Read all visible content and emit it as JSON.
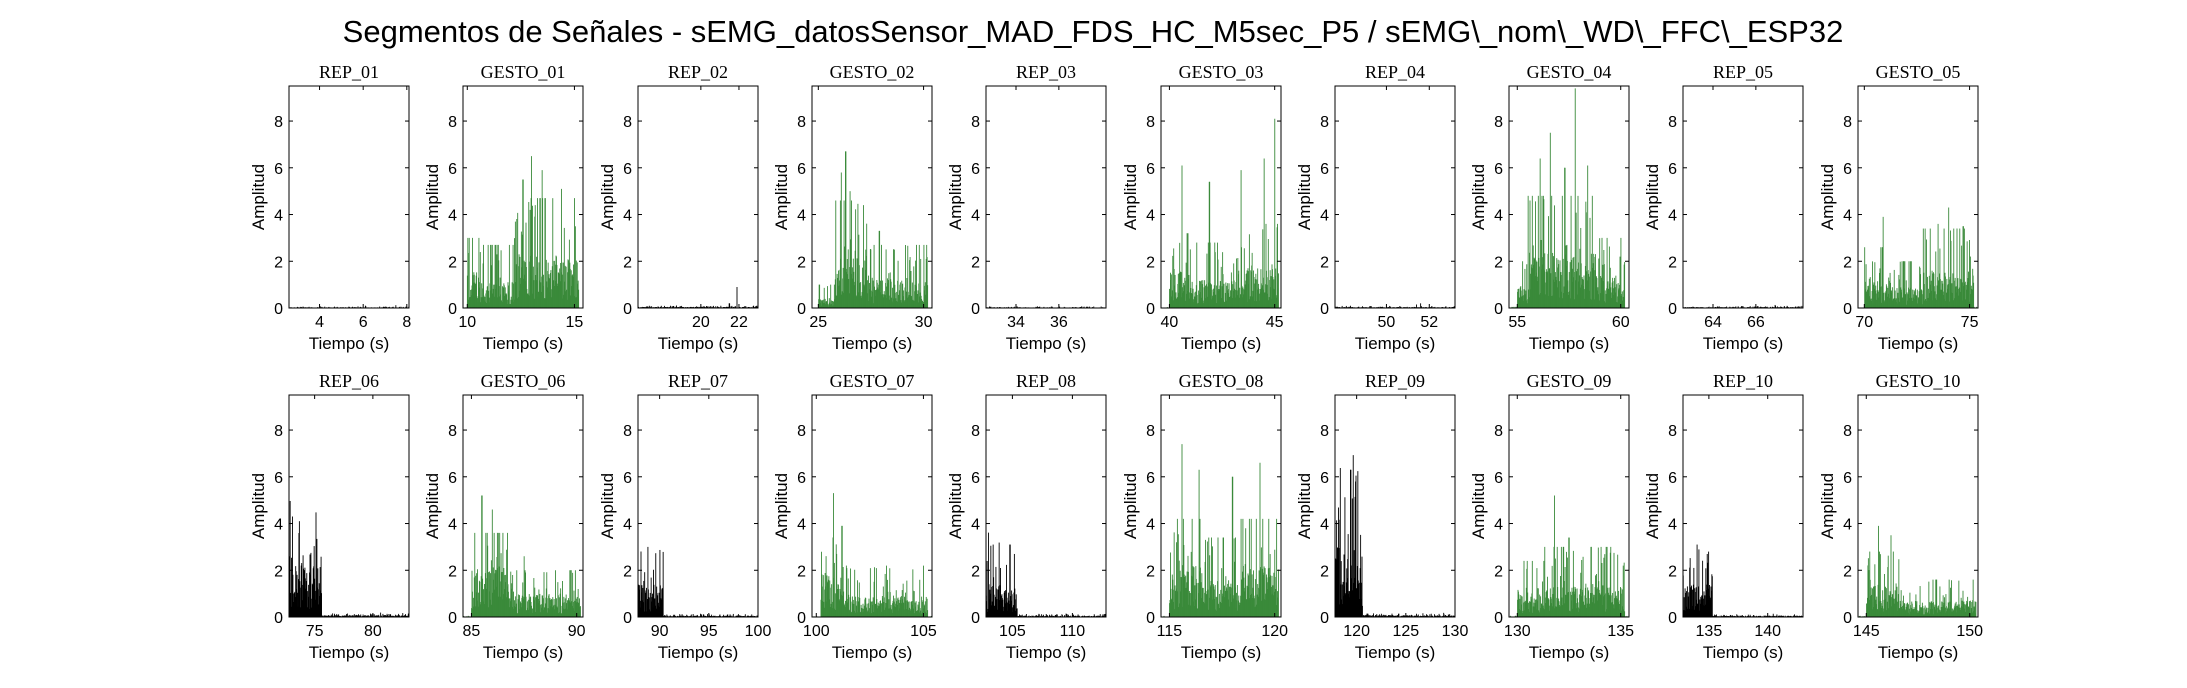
{
  "figure": {
    "title": "Segmentos de Señales - sEMG_datosSensor_MAD_FDS_HC_M5sec_P5 / sEMG\\_nom\\_WD\\_FFC\\_ESP32"
  },
  "colors": {
    "rep": "#000000",
    "gesto": "#3a8a3a",
    "axes": "#000000"
  },
  "chart_data": [
    {
      "type": "bar",
      "title": "REP_01",
      "xlabel": "Tiempo (s)",
      "ylabel": "Amplitud",
      "xlim": [
        2.6,
        8.1
      ],
      "ylim": [
        0,
        9.5
      ],
      "xticks": [
        4,
        6,
        8
      ],
      "yticks": [
        0,
        2,
        4,
        6,
        8
      ],
      "kind": "rep",
      "profile": {
        "base": 0.03,
        "spikes": [
          [
            6.1,
            0.1
          ],
          [
            7.5,
            0.12
          ]
        ]
      }
    },
    {
      "type": "bar",
      "title": "GESTO_01",
      "xlabel": "Tiempo (s)",
      "ylabel": "Amplitud",
      "xlim": [
        9.8,
        15.4
      ],
      "ylim": [
        0,
        9.5
      ],
      "xticks": [
        10,
        15
      ],
      "yticks": [
        0,
        2,
        4,
        6,
        8
      ],
      "kind": "gesto",
      "profile": {
        "segments": [
          [
            10.0,
            10.6,
            1.6,
            3.0
          ],
          [
            10.6,
            12.2,
            1.1,
            2.7
          ],
          [
            12.2,
            15.2,
            2.1,
            4.7
          ]
        ],
        "spikes": [
          [
            12.6,
            5.5
          ],
          [
            13.0,
            6.5
          ],
          [
            13.5,
            5.9
          ],
          [
            14.4,
            5.1
          ]
        ]
      }
    },
    {
      "type": "bar",
      "title": "REP_02",
      "xlabel": "Tiempo (s)",
      "ylabel": "Amplitud",
      "xlim": [
        16.7,
        23.0
      ],
      "ylim": [
        0,
        9.5
      ],
      "xticks": [
        20,
        22
      ],
      "yticks": [
        0,
        2,
        4,
        6,
        8
      ],
      "kind": "rep",
      "profile": {
        "base": 0.05,
        "spikes": [
          [
            21.9,
            0.9
          ],
          [
            21.5,
            0.2
          ]
        ]
      }
    },
    {
      "type": "bar",
      "title": "GESTO_02",
      "xlabel": "Tiempo (s)",
      "ylabel": "Amplitud",
      "xlim": [
        24.7,
        30.4
      ],
      "ylim": [
        0,
        9.5
      ],
      "xticks": [
        25,
        30
      ],
      "yticks": [
        0,
        2,
        4,
        6,
        8
      ],
      "kind": "gesto",
      "profile": {
        "segments": [
          [
            25.0,
            25.8,
            0.4,
            1.0
          ],
          [
            25.8,
            27.3,
            2.3,
            4.6
          ],
          [
            27.3,
            30.2,
            1.3,
            2.7
          ]
        ],
        "spikes": [
          [
            26.1,
            5.8
          ],
          [
            26.3,
            6.7
          ],
          [
            26.5,
            5.0
          ],
          [
            27.9,
            3.3
          ]
        ]
      }
    },
    {
      "type": "bar",
      "title": "REP_03",
      "xlabel": "Tiempo (s)",
      "ylabel": "Amplitud",
      "xlim": [
        32.6,
        38.2
      ],
      "ylim": [
        0,
        9.5
      ],
      "xticks": [
        34,
        36
      ],
      "yticks": [
        0,
        2,
        4,
        6,
        8
      ],
      "kind": "rep",
      "profile": {
        "base": 0.03,
        "spikes": [
          [
            35.0,
            0.07
          ]
        ]
      }
    },
    {
      "type": "bar",
      "title": "GESTO_03",
      "xlabel": "Tiempo (s)",
      "ylabel": "Amplitud",
      "xlim": [
        39.6,
        45.3
      ],
      "ylim": [
        0,
        9.5
      ],
      "xticks": [
        40,
        45
      ],
      "yticks": [
        0,
        2,
        4,
        6,
        8
      ],
      "kind": "gesto",
      "profile": {
        "segments": [
          [
            40.0,
            41.0,
            1.6,
            3.2
          ],
          [
            41.0,
            43.6,
            1.2,
            2.8
          ],
          [
            43.6,
            45.2,
            1.7,
            3.6
          ]
        ],
        "spikes": [
          [
            40.6,
            6.1
          ],
          [
            41.9,
            5.4
          ],
          [
            43.4,
            5.9
          ],
          [
            44.5,
            6.4
          ],
          [
            45.0,
            8.1
          ]
        ]
      }
    },
    {
      "type": "bar",
      "title": "REP_04",
      "xlabel": "Tiempo (s)",
      "ylabel": "Amplitud",
      "xlim": [
        47.6,
        53.2
      ],
      "ylim": [
        0,
        9.5
      ],
      "xticks": [
        50,
        52
      ],
      "yticks": [
        0,
        2,
        4,
        6,
        8
      ],
      "kind": "rep",
      "profile": {
        "base": 0.04,
        "spikes": [
          [
            51.4,
            0.15
          ],
          [
            51.6,
            0.2
          ]
        ]
      }
    },
    {
      "type": "bar",
      "title": "GESTO_04",
      "xlabel": "Tiempo (s)",
      "ylabel": "Amplitud",
      "xlim": [
        54.6,
        60.4
      ],
      "ylim": [
        0,
        9.5
      ],
      "xticks": [
        55,
        60
      ],
      "yticks": [
        0,
        2,
        4,
        6,
        8
      ],
      "kind": "gesto",
      "profile": {
        "segments": [
          [
            55.0,
            55.5,
            1.0,
            2.0
          ],
          [
            55.5,
            58.8,
            2.4,
            4.8
          ],
          [
            58.8,
            60.2,
            1.4,
            3.0
          ]
        ],
        "spikes": [
          [
            56.1,
            6.4
          ],
          [
            56.6,
            7.5
          ],
          [
            57.3,
            6.0
          ],
          [
            57.8,
            9.4
          ],
          [
            58.4,
            6.1
          ]
        ]
      }
    },
    {
      "type": "bar",
      "title": "REP_05",
      "xlabel": "Tiempo (s)",
      "ylabel": "Amplitud",
      "xlim": [
        62.6,
        68.2
      ],
      "ylim": [
        0,
        9.5
      ],
      "xticks": [
        64,
        66
      ],
      "yticks": [
        0,
        2,
        4,
        6,
        8
      ],
      "kind": "rep",
      "profile": {
        "base": 0.04,
        "spikes": [
          [
            66.9,
            0.13
          ]
        ]
      }
    },
    {
      "type": "bar",
      "title": "GESTO_05",
      "xlabel": "Tiempo (s)",
      "ylabel": "Amplitud",
      "xlim": [
        69.7,
        75.4
      ],
      "ylim": [
        0,
        9.5
      ],
      "xticks": [
        70,
        75
      ],
      "yticks": [
        0,
        2,
        4,
        6,
        8
      ],
      "kind": "gesto",
      "profile": {
        "segments": [
          [
            70.0,
            71.2,
            1.2,
            2.6
          ],
          [
            71.2,
            72.8,
            0.9,
            2.0
          ],
          [
            72.8,
            75.2,
            1.6,
            3.4
          ]
        ],
        "spikes": [
          [
            70.9,
            3.9
          ],
          [
            73.5,
            3.6
          ],
          [
            74.0,
            4.3
          ],
          [
            74.7,
            3.5
          ]
        ]
      }
    },
    {
      "type": "bar",
      "title": "REP_06",
      "xlabel": "Tiempo (s)",
      "ylabel": "Amplitud",
      "xlim": [
        72.8,
        83.1
      ],
      "ylim": [
        0,
        9.5
      ],
      "xticks": [
        75,
        80
      ],
      "yticks": [
        0,
        2,
        4,
        6,
        8
      ],
      "kind": "rep",
      "profile": {
        "active": [
          72.8,
          75.6,
          2.2,
          3.8
        ],
        "base": 0.08,
        "spikes": [
          [
            73.1,
            4.3
          ],
          [
            73.7,
            4.1
          ]
        ]
      }
    },
    {
      "type": "bar",
      "title": "GESTO_06",
      "xlabel": "Tiempo (s)",
      "ylabel": "Amplitud",
      "xlim": [
        84.6,
        90.3
      ],
      "ylim": [
        0,
        9.5
      ],
      "xticks": [
        85,
        90
      ],
      "yticks": [
        0,
        2,
        4,
        6,
        8
      ],
      "kind": "gesto",
      "profile": {
        "segments": [
          [
            85.0,
            87.0,
            2.1,
            3.6
          ],
          [
            87.0,
            90.2,
            1.0,
            2.0
          ]
        ],
        "spikes": [
          [
            85.5,
            5.2
          ],
          [
            86.0,
            4.6
          ],
          [
            87.5,
            2.6
          ]
        ]
      }
    },
    {
      "type": "bar",
      "title": "REP_07",
      "xlabel": "Tiempo (s)",
      "ylabel": "Amplitud",
      "xlim": [
        87.8,
        100.0
      ],
      "ylim": [
        0,
        9.5
      ],
      "xticks": [
        90,
        95,
        100
      ],
      "yticks": [
        0,
        2,
        4,
        6,
        8
      ],
      "kind": "rep",
      "profile": {
        "active": [
          87.8,
          90.4,
          1.4,
          2.4
        ],
        "base": 0.06,
        "spikes": [
          [
            88.8,
            3.0
          ]
        ]
      }
    },
    {
      "type": "bar",
      "title": "GESTO_07",
      "xlabel": "Tiempo (s)",
      "ylabel": "Amplitud",
      "xlim": [
        99.8,
        105.4
      ],
      "ylim": [
        0,
        9.5
      ],
      "xticks": [
        100,
        105
      ],
      "yticks": [
        0,
        2,
        4,
        6,
        8
      ],
      "kind": "gesto",
      "profile": {
        "segments": [
          [
            100.2,
            101.3,
            1.9,
            3.4
          ],
          [
            101.3,
            105.2,
            0.9,
            2.2
          ]
        ],
        "spikes": [
          [
            100.8,
            5.3
          ],
          [
            101.2,
            3.9
          ]
        ]
      }
    },
    {
      "type": "bar",
      "title": "REP_08",
      "xlabel": "Tiempo (s)",
      "ylabel": "Amplitud",
      "xlim": [
        102.8,
        112.8
      ],
      "ylim": [
        0,
        9.5
      ],
      "xticks": [
        105,
        110
      ],
      "yticks": [
        0,
        2,
        4,
        6,
        8
      ],
      "kind": "rep",
      "profile": {
        "active": [
          102.8,
          105.4,
          1.4,
          2.5
        ],
        "base": 0.06,
        "spikes": [
          [
            103.4,
            3.1
          ],
          [
            104.8,
            3.1
          ]
        ]
      }
    },
    {
      "type": "bar",
      "title": "GESTO_08",
      "xlabel": "Tiempo (s)",
      "ylabel": "Amplitud",
      "xlim": [
        114.6,
        120.3
      ],
      "ylim": [
        0,
        9.5
      ],
      "xticks": [
        115,
        120
      ],
      "yticks": [
        0,
        2,
        4,
        6,
        8
      ],
      "kind": "gesto",
      "profile": {
        "segments": [
          [
            115.0,
            116.5,
            2.2,
            4.2
          ],
          [
            116.5,
            118.4,
            1.6,
            3.4
          ],
          [
            118.4,
            120.2,
            2.2,
            4.2
          ]
        ],
        "spikes": [
          [
            115.6,
            7.4
          ],
          [
            116.4,
            6.3
          ],
          [
            118.0,
            6.0
          ],
          [
            119.3,
            6.6
          ]
        ]
      }
    },
    {
      "type": "bar",
      "title": "REP_09",
      "xlabel": "Tiempo (s)",
      "ylabel": "Amplitud",
      "xlim": [
        117.8,
        130.0
      ],
      "ylim": [
        0,
        9.5
      ],
      "xticks": [
        120,
        125,
        130
      ],
      "yticks": [
        0,
        2,
        4,
        6,
        8
      ],
      "kind": "rep",
      "profile": {
        "active": [
          117.8,
          120.6,
          3.0,
          5.2
        ],
        "base": 0.08,
        "spikes": [
          [
            119.4,
            6.3
          ],
          [
            119.9,
            5.8
          ]
        ]
      }
    },
    {
      "type": "bar",
      "title": "GESTO_09",
      "xlabel": "Tiempo (s)",
      "ylabel": "Amplitud",
      "xlim": [
        129.6,
        135.4
      ],
      "ylim": [
        0,
        9.5
      ],
      "xticks": [
        130,
        135
      ],
      "yticks": [
        0,
        2,
        4,
        6,
        8
      ],
      "kind": "gesto",
      "profile": {
        "segments": [
          [
            130.0,
            131.3,
            1.1,
            2.4
          ],
          [
            131.3,
            135.2,
            1.3,
            3.0
          ]
        ],
        "spikes": [
          [
            131.8,
            5.2
          ],
          [
            132.5,
            3.4
          ]
        ]
      }
    },
    {
      "type": "bar",
      "title": "REP_10",
      "xlabel": "Tiempo (s)",
      "ylabel": "Amplitud",
      "xlim": [
        132.8,
        143.0
      ],
      "ylim": [
        0,
        9.5
      ],
      "xticks": [
        135,
        140
      ],
      "yticks": [
        0,
        2,
        4,
        6,
        8
      ],
      "kind": "rep",
      "profile": {
        "active": [
          132.8,
          135.3,
          1.4,
          2.5
        ],
        "base": 0.06,
        "spikes": [
          [
            134.0,
            3.1
          ]
        ]
      }
    },
    {
      "type": "bar",
      "title": "GESTO_10",
      "xlabel": "Tiempo (s)",
      "ylabel": "Amplitud",
      "xlim": [
        144.6,
        150.4
      ],
      "ylim": [
        0,
        9.5
      ],
      "xticks": [
        145,
        150
      ],
      "yticks": [
        0,
        2,
        4,
        6,
        8
      ],
      "kind": "gesto",
      "profile": {
        "segments": [
          [
            145.0,
            146.6,
            1.5,
            2.8
          ],
          [
            146.6,
            150.3,
            0.7,
            1.6
          ]
        ],
        "spikes": [
          [
            145.6,
            3.9
          ],
          [
            146.2,
            3.5
          ]
        ]
      }
    }
  ]
}
